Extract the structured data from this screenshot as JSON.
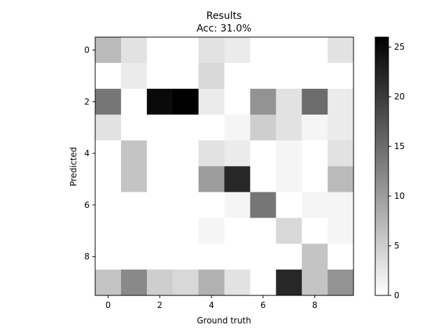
{
  "chart_data": {
    "type": "heatmap",
    "title": "Results",
    "subtitle": "Acc: 31.0%",
    "xlabel": "Ground truth",
    "ylabel": "Predicted",
    "x_ticks": [
      "0",
      "2",
      "4",
      "6",
      "8"
    ],
    "y_ticks": [
      "0",
      "2",
      "4",
      "6",
      "8"
    ],
    "colorbar_ticks": [
      "0",
      "5",
      "10",
      "15",
      "20",
      "25"
    ],
    "colorbar_range": [
      0,
      26
    ],
    "colormap": "greys",
    "matrix": [
      [
        7,
        3,
        0,
        0,
        3,
        2,
        0,
        0,
        0,
        3
      ],
      [
        0,
        2,
        0,
        0,
        4,
        0,
        0,
        0,
        0,
        0
      ],
      [
        14,
        0,
        25,
        26,
        2,
        0,
        11,
        3,
        15,
        2
      ],
      [
        3,
        0,
        0,
        0,
        0,
        1,
        5,
        3,
        1,
        2
      ],
      [
        0,
        6,
        0,
        0,
        3,
        2,
        0,
        1,
        0,
        3
      ],
      [
        0,
        6,
        0,
        0,
        10,
        22,
        0,
        1,
        0,
        7
      ],
      [
        0,
        0,
        0,
        0,
        0,
        1,
        14,
        0,
        1,
        1
      ],
      [
        0,
        0,
        0,
        0,
        1,
        0,
        0,
        4,
        0,
        1
      ],
      [
        0,
        0,
        0,
        0,
        0,
        0,
        0,
        0,
        6,
        0
      ],
      [
        6,
        12,
        5,
        4,
        8,
        3,
        0,
        22,
        6,
        11
      ]
    ]
  }
}
